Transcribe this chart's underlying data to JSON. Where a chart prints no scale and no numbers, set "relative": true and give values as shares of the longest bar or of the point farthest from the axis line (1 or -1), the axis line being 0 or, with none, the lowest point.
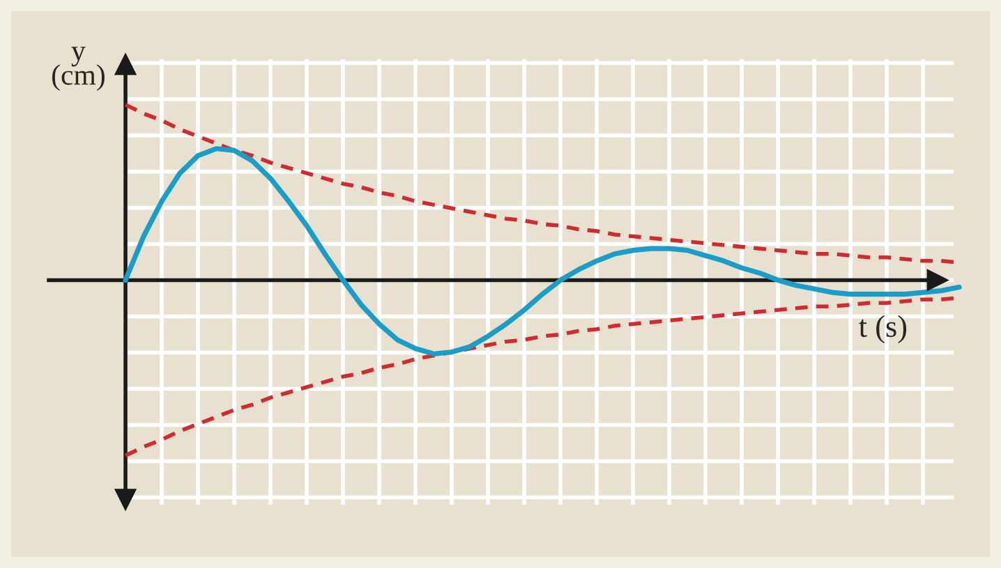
{
  "chart_data": {
    "type": "line",
    "relative": true,
    "xlabel": "t (s)",
    "ylabel": "y (cm)",
    "grid": true,
    "tick_labels": false,
    "categories": [
      null,
      null,
      null,
      null,
      null,
      null,
      null,
      null,
      null,
      null,
      null,
      null,
      null,
      null,
      null,
      null,
      null,
      null,
      null,
      null,
      null,
      null,
      null,
      null,
      null,
      null,
      null,
      null,
      null,
      null,
      null,
      null,
      null,
      null,
      null,
      null,
      null,
      null,
      null,
      null,
      null,
      null,
      null,
      null,
      null,
      null,
      null
    ],
    "series": [
      {
        "color": "#1a9dc9",
        "line_style": "solid",
        "values": [
          0,
          0.25,
          0.45,
          0.61,
          0.71,
          0.75,
          0.74,
          0.68,
          0.58,
          0.45,
          0.31,
          0.15,
          0,
          -0.14,
          -0.25,
          -0.34,
          -0.39,
          -0.42,
          -0.41,
          -0.38,
          -0.32,
          -0.25,
          -0.17,
          -0.08,
          0,
          0.06,
          0.11,
          0.15,
          0.17,
          0.18,
          0.18,
          0.17,
          0.14,
          0.11,
          0.07,
          0.04,
          0,
          -0.03,
          -0.05,
          -0.07,
          -0.08,
          -0.08,
          -0.08,
          -0.08,
          -0.07,
          -0.06,
          -0.04
        ]
      },
      {
        "color": "#d12a2f",
        "line_style": "dashed",
        "values": [
          1,
          0.95,
          0.91,
          0.86,
          0.82,
          0.78,
          0.74,
          0.71,
          0.67,
          0.64,
          0.61,
          0.58,
          0.55,
          0.53,
          0.5,
          0.48,
          0.45,
          0.43,
          0.41,
          0.39,
          0.37,
          0.35,
          0.34,
          0.32,
          0.31,
          0.29,
          0.28,
          0.26,
          0.25,
          0.24,
          0.23,
          0.22,
          0.21,
          0.2,
          0.19,
          0.18,
          0.17,
          0.16,
          0.15,
          0.15,
          0.14,
          0.13,
          0.13,
          0.12,
          0.11,
          0.11,
          0.1
        ]
      },
      {
        "color": "#d12a2f",
        "line_style": "dashed",
        "values": [
          -1,
          -0.95,
          -0.91,
          -0.86,
          -0.82,
          -0.78,
          -0.74,
          -0.71,
          -0.67,
          -0.64,
          -0.61,
          -0.58,
          -0.55,
          -0.53,
          -0.5,
          -0.48,
          -0.45,
          -0.43,
          -0.41,
          -0.39,
          -0.37,
          -0.35,
          -0.34,
          -0.32,
          -0.31,
          -0.29,
          -0.28,
          -0.26,
          -0.25,
          -0.24,
          -0.23,
          -0.22,
          -0.21,
          -0.2,
          -0.19,
          -0.18,
          -0.17,
          -0.16,
          -0.15,
          -0.15,
          -0.14,
          -0.13,
          -0.13,
          -0.12,
          -0.11,
          -0.11,
          -0.1
        ]
      }
    ]
  }
}
